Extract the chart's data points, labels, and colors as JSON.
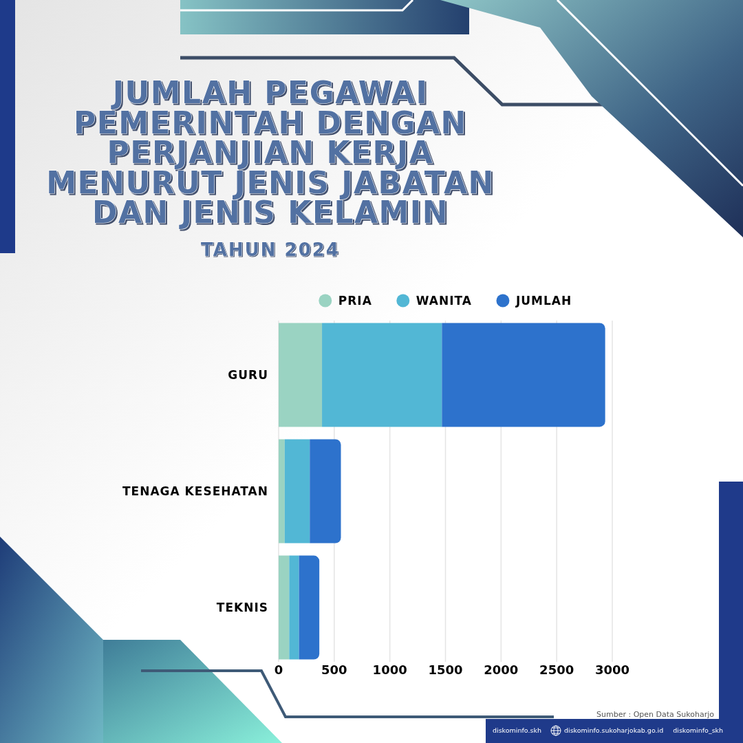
{
  "chart_data": {
    "type": "bar",
    "orientation": "horizontal",
    "stacked": true,
    "title": "JUMLAH PEGAWAI PEMERINTAH DENGAN PERJANJIAN KERJA MENURUT JENIS JABATAN DAN JENIS KELAMIN",
    "subtitle": "TAHUN 2024",
    "categories": [
      "GURU",
      "TENAGA KESEHATAN",
      "TEKNIS"
    ],
    "series": [
      {
        "name": "PRIA",
        "color": "#9ad3c2",
        "values": [
          390,
          55,
          95
        ]
      },
      {
        "name": "WANITA",
        "color": "#52b7d5",
        "values": [
          1078,
          225,
          88
        ]
      },
      {
        "name": "JUMLAH",
        "color": "#2d72cc",
        "values": [
          1468,
          280,
          183
        ]
      }
    ],
    "xlim": [
      0,
      3000
    ],
    "xticks": [
      0,
      500,
      1000,
      1500,
      2000,
      2500,
      3000
    ],
    "grid": "x",
    "legend": "top",
    "annotations": [
      "Sumber : Open Data Sukoharjo",
      "diskominfo.skh",
      "diskominfo.sukoharjokab.go.id",
      "diskominfo_skh"
    ]
  }
}
